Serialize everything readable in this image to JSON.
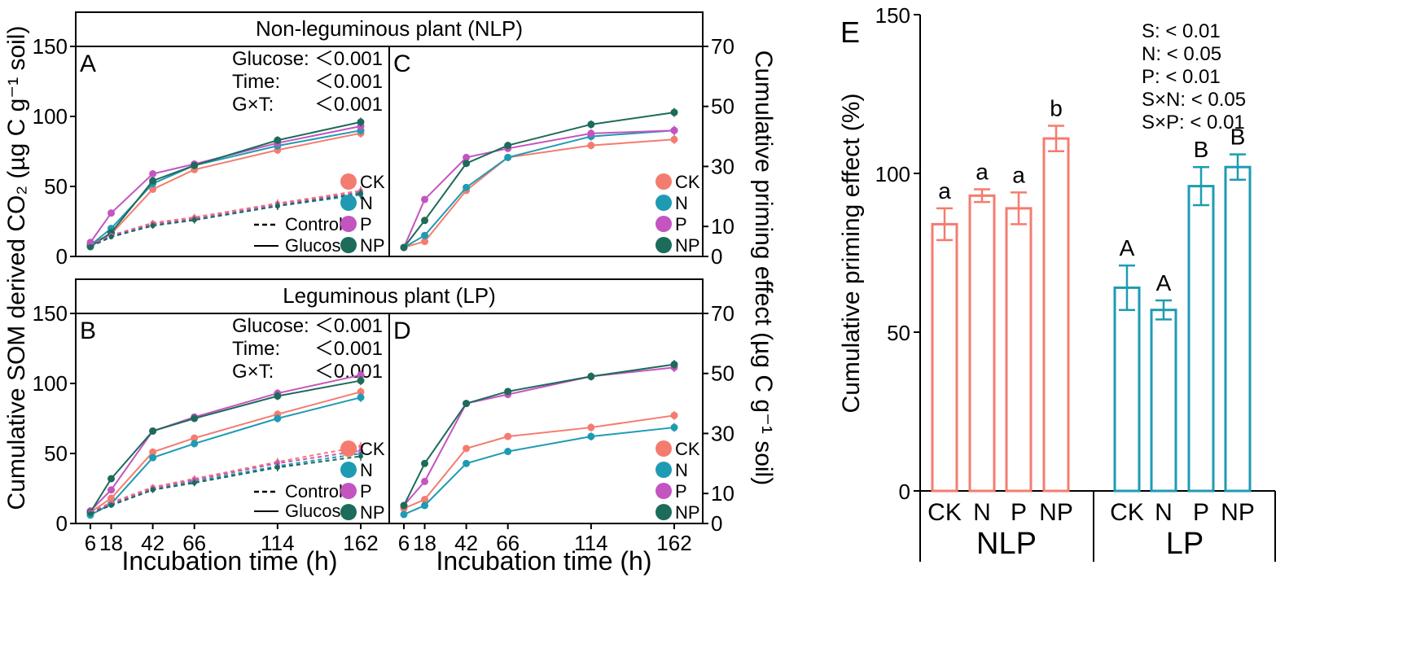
{
  "figure": {
    "header_top": "Non-leguminous plant (NLP)",
    "header_bottom": "Leguminous plant (LP)",
    "left_ylabel": "Cumulative SOM derived CO₂ (µg C g⁻¹ soil)",
    "right_ylabel": "Cumulative priming effect (µg C g⁻¹ soil)",
    "xlabel": "Incubation time (h)",
    "stats_A": [
      {
        "k": "Glucose:",
        "v": "＜0.001"
      },
      {
        "k": "Time:",
        "v": "＜0.001"
      },
      {
        "k": "G×T:",
        "v": "＜0.001"
      }
    ],
    "stats_B": [
      {
        "k": "Glucose:",
        "v": "＜0.001"
      },
      {
        "k": "Time:",
        "v": "＜0.001"
      },
      {
        "k": "G×T:",
        "v": "＜0.001"
      }
    ],
    "line_legend": {
      "control": "Control",
      "glucose": "Glucose"
    },
    "colors": {
      "CK": "#f47c6f",
      "N": "#1e9bb3",
      "P": "#c455c0",
      "NP": "#1d6b5a"
    }
  },
  "chart_data": [
    {
      "id": "A",
      "type": "line",
      "title": "A",
      "ylim": [
        0,
        150
      ],
      "yticks": [
        0,
        50,
        100,
        150
      ],
      "x": [
        6,
        18,
        42,
        66,
        114,
        162
      ],
      "series": [
        {
          "name": "CK",
          "treatment": "Glucose",
          "values": [
            9,
            16,
            48,
            62,
            76,
            88
          ]
        },
        {
          "name": "N",
          "treatment": "Glucose",
          "values": [
            8,
            20,
            52,
            65,
            79,
            90
          ]
        },
        {
          "name": "P",
          "treatment": "Glucose",
          "values": [
            10,
            31,
            59,
            66,
            81,
            93
          ]
        },
        {
          "name": "NP",
          "treatment": "Glucose",
          "values": [
            7,
            17,
            54,
            65,
            83,
            96
          ]
        },
        {
          "name": "CK",
          "treatment": "Control",
          "values": [
            8,
            15,
            24,
            28,
            38,
            47
          ]
        },
        {
          "name": "N",
          "treatment": "Control",
          "values": [
            7,
            14,
            22,
            26,
            36,
            44
          ]
        },
        {
          "name": "P",
          "treatment": "Control",
          "values": [
            8,
            15,
            23,
            27,
            37,
            46
          ]
        },
        {
          "name": "NP",
          "treatment": "Control",
          "values": [
            7,
            14,
            22,
            26,
            36,
            45
          ]
        }
      ]
    },
    {
      "id": "B",
      "type": "line",
      "title": "B",
      "ylim": [
        0,
        150
      ],
      "yticks": [
        0,
        50,
        100,
        150
      ],
      "x": [
        6,
        18,
        42,
        66,
        114,
        162
      ],
      "series": [
        {
          "name": "CK",
          "treatment": "Glucose",
          "values": [
            8,
            18,
            51,
            61,
            78,
            94
          ]
        },
        {
          "name": "N",
          "treatment": "Glucose",
          "values": [
            6,
            14,
            47,
            57,
            75,
            90
          ]
        },
        {
          "name": "P",
          "treatment": "Glucose",
          "values": [
            9,
            24,
            66,
            76,
            93,
            106
          ]
        },
        {
          "name": "NP",
          "treatment": "Glucose",
          "values": [
            8,
            32,
            66,
            75,
            91,
            102
          ]
        },
        {
          "name": "CK",
          "treatment": "Control",
          "values": [
            8,
            15,
            26,
            32,
            44,
            55
          ]
        },
        {
          "name": "N",
          "treatment": "Control",
          "values": [
            7,
            13,
            24,
            30,
            41,
            50
          ]
        },
        {
          "name": "P",
          "treatment": "Control",
          "values": [
            8,
            14,
            25,
            31,
            43,
            52
          ]
        },
        {
          "name": "NP",
          "treatment": "Control",
          "values": [
            7,
            13,
            24,
            29,
            40,
            48
          ]
        }
      ]
    },
    {
      "id": "C",
      "type": "line",
      "title": "C",
      "ylim": [
        0,
        70
      ],
      "yticks": [
        0,
        10,
        30,
        50,
        70
      ],
      "x": [
        6,
        18,
        42,
        66,
        114,
        162
      ],
      "series": [
        {
          "name": "CK",
          "values": [
            3,
            5,
            22,
            33,
            37,
            39
          ]
        },
        {
          "name": "N",
          "values": [
            3,
            7,
            23,
            33,
            40,
            42
          ]
        },
        {
          "name": "P",
          "values": [
            3,
            19,
            33,
            36,
            41,
            42
          ]
        },
        {
          "name": "NP",
          "values": [
            3,
            12,
            31,
            37,
            44,
            48
          ]
        }
      ]
    },
    {
      "id": "D",
      "type": "line",
      "title": "D",
      "ylim": [
        0,
        70
      ],
      "yticks": [
        0,
        10,
        30,
        50,
        70
      ],
      "x": [
        6,
        18,
        42,
        66,
        114,
        162
      ],
      "series": [
        {
          "name": "CK",
          "values": [
            5,
            8,
            25,
            29,
            32,
            36
          ]
        },
        {
          "name": "N",
          "values": [
            3,
            6,
            20,
            24,
            29,
            32
          ]
        },
        {
          "name": "P",
          "values": [
            6,
            14,
            40,
            43,
            49,
            52
          ]
        },
        {
          "name": "NP",
          "values": [
            6,
            20,
            40,
            44,
            49,
            53
          ]
        }
      ]
    },
    {
      "id": "E",
      "type": "bar",
      "title": "E",
      "ylabel": "Cumulative priming effect (%)",
      "ylim": [
        0,
        150
      ],
      "yticks": [
        0,
        50,
        100,
        150
      ],
      "groups": [
        {
          "name": "NLP",
          "color": "#f47c6f",
          "categories": [
            "CK",
            "N",
            "P",
            "NP"
          ],
          "values": [
            84,
            93,
            89,
            111
          ],
          "errors": [
            5,
            2,
            5,
            4
          ],
          "letters": [
            "a",
            "a",
            "a",
            "b"
          ]
        },
        {
          "name": "LP",
          "color": "#1e9bb3",
          "categories": [
            "CK",
            "N",
            "P",
            "NP"
          ],
          "values": [
            64,
            57,
            96,
            102
          ],
          "errors": [
            7,
            3,
            6,
            4
          ],
          "letters": [
            "A",
            "A",
            "B",
            "B"
          ]
        }
      ],
      "stats": [
        "S: < 0.01",
        "N: < 0.05",
        "P: < 0.01",
        "S×N: < 0.05",
        "S×P: < 0.01"
      ]
    }
  ]
}
